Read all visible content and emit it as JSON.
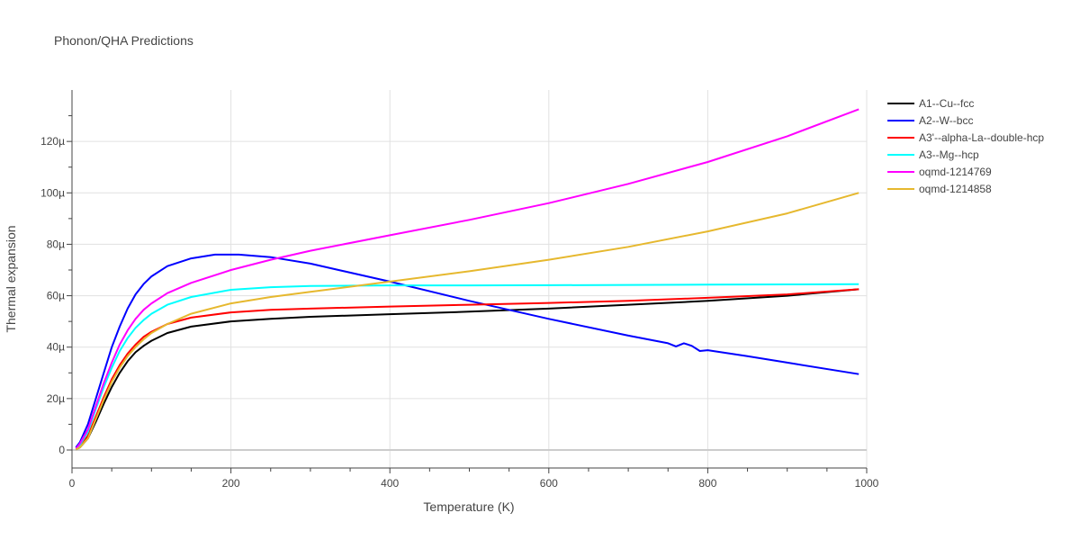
{
  "chart_data": {
    "type": "line",
    "title": "Phonon/QHA Predictions",
    "xlabel": "Temperature (K)",
    "ylabel": "Thermal expansion",
    "xlim": [
      0,
      1000
    ],
    "ylim": [
      -7,
      140
    ],
    "x_ticks": [
      0,
      200,
      400,
      600,
      800,
      1000
    ],
    "x_tick_labels": [
      "0",
      "200",
      "400",
      "600",
      "800",
      "1000"
    ],
    "y_ticks": [
      0,
      20,
      40,
      60,
      80,
      100,
      120
    ],
    "y_tick_labels": [
      "0",
      "20µ",
      "40µ",
      "60µ",
      "80µ",
      "100µ",
      "120µ"
    ],
    "grid": true,
    "legend_position": "top-right",
    "series": [
      {
        "name": "A1--Cu--fcc",
        "color": "#000000",
        "x": [
          5,
          10,
          20,
          30,
          40,
          50,
          60,
          70,
          80,
          90,
          100,
          120,
          150,
          200,
          250,
          300,
          400,
          500,
          600,
          700,
          800,
          900,
          990
        ],
        "y": [
          0.2,
          1,
          4.5,
          11,
          18,
          24.5,
          30,
          34.5,
          38,
          40.5,
          42.5,
          45.5,
          48,
          50,
          51,
          51.8,
          52.8,
          53.8,
          55,
          56.5,
          58,
          60,
          62.5
        ]
      },
      {
        "name": "A2--W--bcc",
        "color": "#0000ff",
        "x": [
          5,
          10,
          20,
          30,
          40,
          50,
          60,
          70,
          80,
          90,
          100,
          120,
          150,
          180,
          210,
          250,
          300,
          400,
          500,
          600,
          700,
          750,
          760,
          770,
          780,
          790,
          800,
          850,
          900,
          990
        ],
        "y": [
          1,
          3,
          10,
          20,
          30,
          40,
          48,
          55,
          60.5,
          64.5,
          67.5,
          71.5,
          74.5,
          76,
          76,
          75,
          72.5,
          65.5,
          58,
          51,
          44.5,
          41.5,
          40.3,
          41.5,
          40.5,
          38.5,
          38.8,
          36.5,
          34,
          29.5
        ]
      },
      {
        "name": "A3'--alpha-La--double-hcp",
        "color": "#ff0000",
        "x": [
          5,
          10,
          20,
          30,
          40,
          50,
          60,
          70,
          80,
          90,
          100,
          120,
          150,
          200,
          250,
          300,
          400,
          500,
          600,
          700,
          800,
          900,
          990
        ],
        "y": [
          0.3,
          1.5,
          5.5,
          13,
          20.5,
          27.5,
          33,
          37.5,
          41,
          44,
          46,
          49,
          51.5,
          53.5,
          54.5,
          55,
          55.8,
          56.5,
          57.2,
          58,
          59.2,
          60.5,
          62.5
        ]
      },
      {
        "name": "A3--Mg--hcp",
        "color": "#00ffff",
        "x": [
          5,
          10,
          20,
          30,
          40,
          50,
          60,
          70,
          80,
          90,
          100,
          120,
          150,
          200,
          250,
          300,
          400,
          500,
          600,
          700,
          800,
          900,
          990
        ],
        "y": [
          0.5,
          2,
          7,
          16,
          24.5,
          32,
          38.5,
          43.5,
          47.5,
          50.5,
          53,
          56.5,
          59.5,
          62.3,
          63.3,
          63.8,
          64,
          64,
          64.1,
          64.2,
          64.3,
          64.4,
          64.5
        ]
      },
      {
        "name": "oqmd-1214769",
        "color": "#ff00ff",
        "x": [
          5,
          10,
          20,
          30,
          40,
          50,
          60,
          70,
          80,
          90,
          100,
          120,
          150,
          200,
          250,
          300,
          400,
          500,
          600,
          700,
          800,
          900,
          990
        ],
        "y": [
          0.5,
          2.5,
          8,
          17,
          26,
          34,
          41,
          46.5,
          51,
          54.5,
          57,
          61,
          65,
          70,
          74,
          77.5,
          83.5,
          89.5,
          96,
          103.5,
          112,
          122,
          132.5
        ]
      },
      {
        "name": "oqmd-1214858",
        "color": "#e6b82e",
        "x": [
          5,
          10,
          20,
          30,
          40,
          50,
          60,
          70,
          80,
          90,
          100,
          120,
          150,
          200,
          250,
          300,
          400,
          500,
          600,
          700,
          800,
          900,
          990
        ],
        "y": [
          0.2,
          1,
          4.5,
          12,
          19.5,
          26.5,
          32,
          36.5,
          40,
          43,
          45.5,
          49,
          53,
          57,
          59.5,
          61.5,
          65.5,
          69.5,
          74,
          79,
          85,
          92,
          100
        ]
      }
    ]
  }
}
